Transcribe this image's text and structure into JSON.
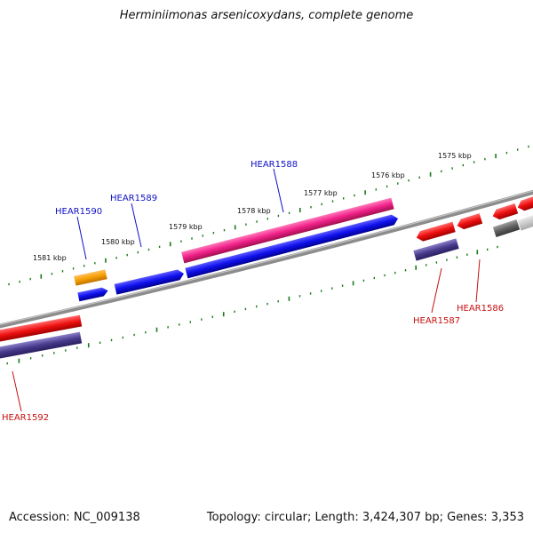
{
  "title": "Herminiimonas arsenicoxydans, complete genome",
  "footer": {
    "accession": "Accession: NC_009138",
    "summary": "Topology: circular; Length: 3,424,307 bp; Genes: 3,353"
  },
  "ruler": {
    "labels": [
      "1581 kbp",
      "1580 kbp",
      "1579 kbp",
      "1578 kbp",
      "1577 kbp",
      "1576 kbp",
      "1575 kbp"
    ],
    "tick_color": "#1a7a1a"
  },
  "genes": [
    {
      "name": "HEAR1590",
      "color": "#1010c8"
    },
    {
      "name": "HEAR1589",
      "color": "#1010c8"
    },
    {
      "name": "HEAR1588",
      "color": "#1010c8"
    },
    {
      "name": "HEAR1587",
      "color": "#c81010"
    },
    {
      "name": "HEAR1586",
      "color": "#c81010"
    },
    {
      "name": "HEAR1592",
      "color": "#c81010"
    }
  ],
  "feature_colors": {
    "cds_forward": "#1010ee",
    "cds_reverse": "#ee1010",
    "rna": "#f0208a",
    "other": "#f5a000",
    "misc": "#483a8c",
    "pseudo": "#606060",
    "backbone": "#888888"
  }
}
